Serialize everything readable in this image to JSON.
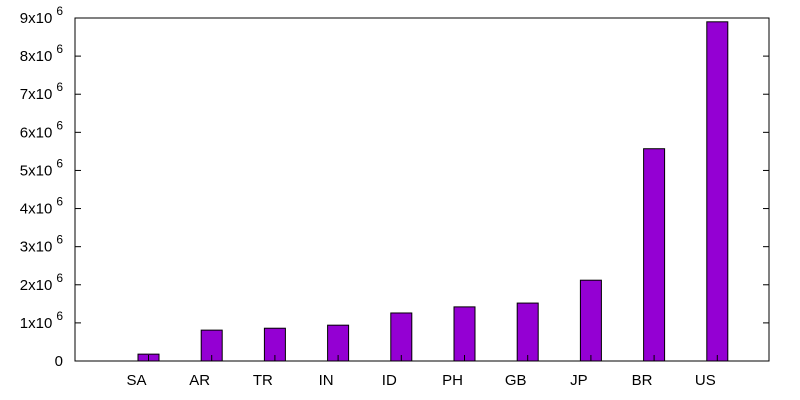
{
  "chart_data": {
    "type": "bar",
    "categories": [
      "SA",
      "AR",
      "TR",
      "IN",
      "ID",
      "PH",
      "GB",
      "JP",
      "BR",
      "US"
    ],
    "values": [
      180000,
      810000,
      860000,
      940000,
      1260000,
      1420000,
      1520000,
      2120000,
      5570000,
      8900000
    ],
    "ylim": [
      0,
      9000000
    ],
    "yticks": [
      {
        "value": 0,
        "label": "0",
        "exp": ""
      },
      {
        "value": 1000000,
        "label": "1x10",
        "exp": "6"
      },
      {
        "value": 2000000,
        "label": "2x10",
        "exp": "6"
      },
      {
        "value": 3000000,
        "label": "3x10",
        "exp": "6"
      },
      {
        "value": 4000000,
        "label": "4x10",
        "exp": "6"
      },
      {
        "value": 5000000,
        "label": "5x10",
        "exp": "6"
      },
      {
        "value": 6000000,
        "label": "6x10",
        "exp": "6"
      },
      {
        "value": 7000000,
        "label": "7x10",
        "exp": "6"
      },
      {
        "value": 8000000,
        "label": "8x10",
        "exp": "6"
      },
      {
        "value": 9000000,
        "label": "9x10",
        "exp": "6"
      }
    ],
    "bar_color": "#9400d3",
    "grid": false,
    "legend": "none"
  }
}
